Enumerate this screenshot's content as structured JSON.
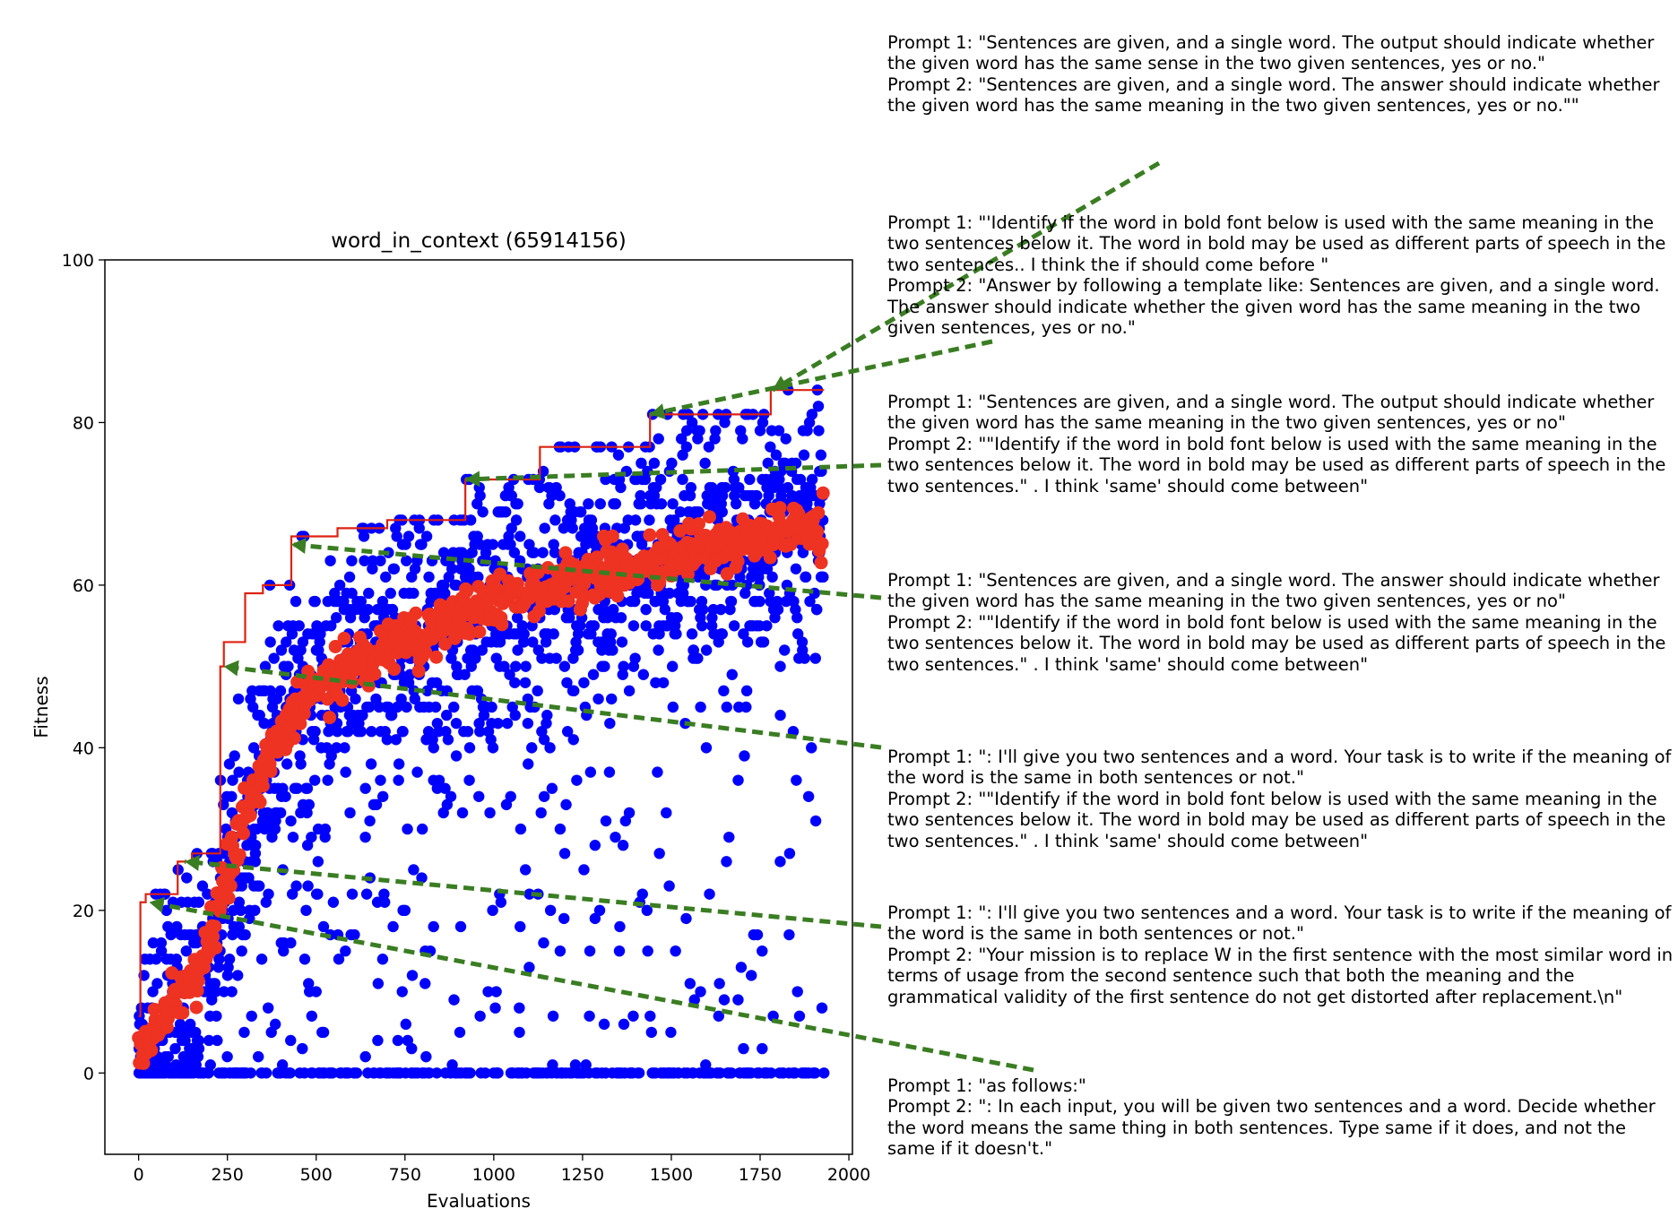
{
  "chart_data": {
    "type": "scatter",
    "title": "word_in_context (65914156)",
    "xlabel": "Evaluations",
    "ylabel": "Fitness",
    "xlim": [
      -95,
      2010
    ],
    "ylim": [
      -10,
      100
    ],
    "xticks": [
      0,
      250,
      500,
      750,
      1000,
      1250,
      1500,
      1750,
      2000
    ],
    "yticks": [
      0,
      20,
      40,
      60,
      80,
      100
    ],
    "grid": false,
    "legend": "none",
    "colors": {
      "all": "#0000ff",
      "mean": "#ee3322",
      "best": "#dd2211",
      "arrow": "#3a7d22"
    },
    "series": [
      {
        "kind": "scatter-all",
        "count": 1930,
        "x_range": [
          0,
          1930
        ],
        "y_range": [
          0,
          84
        ]
      },
      {
        "kind": "scatter-mean",
        "points": [
          [
            0,
            2
          ],
          [
            20,
            4
          ],
          [
            50,
            5
          ],
          [
            80,
            7
          ],
          [
            110,
            9
          ],
          [
            150,
            12
          ],
          [
            190,
            15
          ],
          [
            220,
            19
          ],
          [
            260,
            26
          ],
          [
            300,
            31
          ],
          [
            350,
            37
          ],
          [
            400,
            42
          ],
          [
            450,
            45
          ],
          [
            500,
            47
          ],
          [
            560,
            49
          ],
          [
            650,
            51
          ],
          [
            750,
            53
          ],
          [
            850,
            55
          ],
          [
            950,
            57
          ],
          [
            1050,
            59
          ],
          [
            1150,
            60
          ],
          [
            1250,
            61
          ],
          [
            1350,
            62
          ],
          [
            1450,
            63
          ],
          [
            1550,
            64
          ],
          [
            1650,
            65
          ],
          [
            1750,
            66
          ],
          [
            1850,
            67
          ],
          [
            1930,
            67
          ]
        ]
      },
      {
        "kind": "step-best",
        "points": [
          [
            0,
            7
          ],
          [
            5,
            21
          ],
          [
            20,
            22
          ],
          [
            110,
            26
          ],
          [
            150,
            27
          ],
          [
            230,
            50
          ],
          [
            240,
            53
          ],
          [
            300,
            59
          ],
          [
            350,
            60
          ],
          [
            430,
            66
          ],
          [
            560,
            67
          ],
          [
            700,
            68
          ],
          [
            920,
            73
          ],
          [
            1130,
            77
          ],
          [
            1440,
            81
          ],
          [
            1500,
            81
          ],
          [
            1780,
            84
          ],
          [
            1930,
            84
          ]
        ]
      }
    ],
    "annotations": [
      {
        "prompt1": "Prompt 1: \"Sentences are given, and a single word. The output should indicate whether the given word has the same sense in the two given sentences, yes or no.\"",
        "prompt2": "Prompt 2: \"Sentences are given, and a single word. The answer should indicate whether the given word has the same meaning in the two given sentences, yes or no.\"\"",
        "arrow_from": [
          1293,
          182
        ],
        "arrow_to": [
          1785,
          84
        ]
      },
      {
        "prompt1": "Prompt 1: \"'Identify if the word in bold font below is used with the same meaning in the two sentences below it. The word in bold may be used as different parts of speech in the two sentences.. I think the if should come before \"",
        "prompt2": "Prompt 2: \"Answer by following a template like: Sentences are given, and a single word. The answer should indicate whether the given word has the same meaning in the two given sentences, yes or no.\"",
        "arrow_from": [
          1107,
          381
        ],
        "arrow_to": [
          1440,
          81
        ]
      },
      {
        "prompt1": "Prompt 1: \"Sentences are given, and a single word. The output should indicate whether the given word has the same meaning in the two given sentences, yes or no\"",
        "prompt2": "Prompt 2: \"\"Identify if the word in bold font below is used with the same meaning in the two sentences below it. The word in bold may be used as different parts of speech in the two sentences.\" . I think 'same' should come between\"",
        "arrow_from": [
          983,
          519
        ],
        "arrow_to": [
          920,
          73
        ]
      },
      {
        "prompt1": "Prompt 1: \"Sentences are given, and a single word. The answer should indicate whether the given word has the same meaning in the two given sentences, yes or no\"",
        "prompt2": "Prompt 2: \"\"Identify if the word in bold font below is used with the same meaning in the two sentences below it. The word in bold may be used as different parts of speech in the two sentences.\" . I think 'same' should come between\"",
        "arrow_from": [
          983,
          667
        ],
        "arrow_to": [
          430,
          65
        ]
      },
      {
        "prompt1": "Prompt 1: \": I'll give you two sentences and a word. Your task is to write if the meaning of the word is the same in both sentences or not.\"",
        "prompt2": "Prompt 2: \"\"Identify if the word in bold font below is used with the same meaning in the two sentences below it. The word in bold may be used as different parts of speech in the two sentences.\" . I think 'same' should come between\"",
        "arrow_from": [
          983,
          834
        ],
        "arrow_to": [
          240,
          50
        ]
      },
      {
        "prompt1": "Prompt 1: \": I'll give you two sentences and a word. Your task is to write if the meaning of the word is the same in both sentences or not.\"",
        "prompt2": "Prompt 2: \"Your mission is to replace W in the first sentence with the most similar word in terms of usage from the second sentence such that both the meaning and the grammatical validity of the first sentence do not get distorted after replacement.\\n\"",
        "arrow_from": [
          983,
          1034
        ],
        "arrow_to": [
          130,
          26
        ]
      },
      {
        "prompt1": "Prompt 1: \"as follows:\"",
        "prompt2": "Prompt 2: \": In each input, you will be given two sentences and a word. Decide whether the word means the same thing in both sentences. Type same if it does, and not the same if it doesn't.\"",
        "arrow_from": [
          1153,
          1194
        ],
        "arrow_to": [
          30,
          21
        ]
      }
    ]
  }
}
